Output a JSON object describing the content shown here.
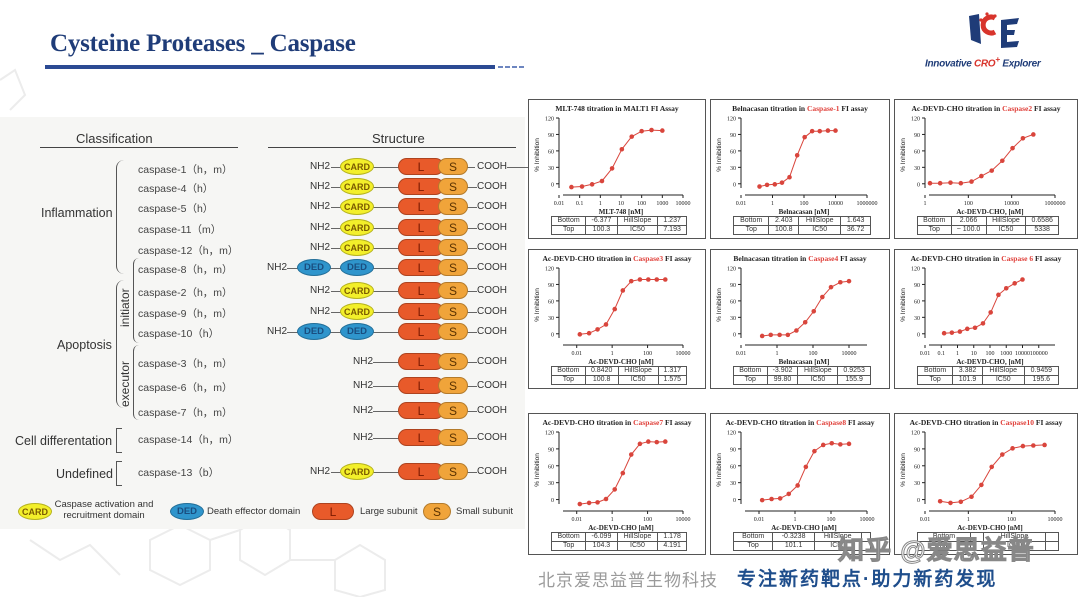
{
  "header": {
    "title": "Cysteine Proteases _ Caspase",
    "logo_text_1": "Innovative ",
    "logo_text_2": "CRO",
    "logo_text_sup": "+",
    "logo_text_3": " Explorer",
    "logo_mark": "ICE"
  },
  "classification": {
    "col_classification": "Classification",
    "col_structure": "Structure",
    "categories": {
      "inflammation": "Inflammation",
      "apoptosis": "Apoptosis",
      "initiator": "initiator",
      "executor": "executor",
      "cell_diff": "Cell differentation",
      "undefined": "Undefined"
    },
    "rows": [
      {
        "name": "caspase-1（h，m）",
        "domains": [
          "CARD"
        ]
      },
      {
        "name": "caspase-4（h）",
        "domains": [
          "CARD"
        ]
      },
      {
        "name": "caspase-5（h）",
        "domains": [
          "CARD"
        ]
      },
      {
        "name": "caspase-11（m）",
        "domains": [
          "CARD"
        ]
      },
      {
        "name": "caspase-12（h，m）",
        "domains": [
          "CARD"
        ]
      },
      {
        "name": "caspase-8（h，m）",
        "domains": [
          "DED",
          "DED"
        ]
      },
      {
        "name": "caspase-2（h，m）",
        "domains": [
          "CARD"
        ]
      },
      {
        "name": "caspase-9（h，m）",
        "domains": [
          "CARD"
        ]
      },
      {
        "name": "caspase-10（h）",
        "domains": [
          "DED",
          "DED"
        ]
      },
      {
        "name": "caspase-3（h，m）",
        "domains": []
      },
      {
        "name": "caspase-6（h，m）",
        "domains": []
      },
      {
        "name": "caspase-7（h，m）",
        "domains": []
      },
      {
        "name": "caspase-14（h，m）",
        "domains": []
      },
      {
        "name": "caspase-13（b）",
        "domains": [
          "CARD"
        ]
      }
    ],
    "terminal_n": "NH2",
    "terminal_c": "COOH",
    "large_label": "L",
    "small_label": "S",
    "card_label": "CARD",
    "ded_label": "DED",
    "legend": {
      "card_desc_1": "Caspase activation and",
      "card_desc_2": "recruitment domain",
      "ded_desc": "Death effector domain",
      "large_desc": "Large subunit",
      "small_desc": "Small subunit"
    }
  },
  "colors": {
    "title_blue": "#1f3c78",
    "card_yellow": "#f3ef2a",
    "ded_blue": "#2f95cc",
    "large_orange": "#e85a2a",
    "small_orange": "#f0a43a",
    "curve_red": "#d9453c",
    "highlight_red": "#e0403a"
  },
  "footer": {
    "company": "北京爱思益普生物科技",
    "slogan": "专注新药靶点·助力新药发现",
    "watermark": "知乎 @爱思益普"
  },
  "chart_data": [
    {
      "type": "line",
      "title_pre": "MLT-748 titration in MALT1 FI Assay",
      "title_hl": "",
      "title_post": "",
      "xlabel": "MLT-748  [nM]",
      "ylabel": "% Inhibition",
      "xscale": "log",
      "xlim": [
        0.01,
        10000
      ],
      "ylim": [
        -15,
        120
      ],
      "xticks": [
        "0.01",
        "0.1",
        "1",
        "10",
        "100",
        "1000",
        "10000"
      ],
      "yticks": [
        0,
        30,
        60,
        90,
        120
      ],
      "x": [
        0.04,
        0.13,
        0.4,
        1.2,
        3.7,
        11,
        33,
        100,
        300,
        1000
      ],
      "y": [
        -6,
        -5,
        -1,
        5,
        28,
        63,
        86,
        96,
        98,
        97
      ],
      "fit": {
        "Bottom": "-6.377",
        "Top": "100.3",
        "HillSlope": "1.237",
        "IC50": "7.193"
      }
    },
    {
      "type": "line",
      "title_pre": "Belnacasan titration in ",
      "title_hl": "Caspase-1",
      "title_post": " FI assay",
      "xlabel": "Belnacasan [nM]",
      "ylabel": "% Inhibition",
      "xscale": "log",
      "xlim": [
        0.01,
        1000000
      ],
      "ylim": [
        -15,
        120
      ],
      "xticks": [
        "0.01",
        "1",
        "100",
        "10000",
        "1000000"
      ],
      "yticks": [
        0,
        30,
        60,
        90,
        120
      ],
      "x": [
        0.15,
        0.45,
        1.4,
        4,
        12,
        37,
        110,
        330,
        1000,
        3300,
        10000
      ],
      "y": [
        -5,
        -2,
        -1,
        2,
        12,
        52,
        85,
        96,
        96,
        97,
        97
      ],
      "fit": {
        "Bottom": "2.403",
        "Top": "100.8",
        "HillSlope": "1.643",
        "IC50": "36.72"
      }
    },
    {
      "type": "line",
      "title_pre": "Ac-DEVD-CHO titration in ",
      "title_hl": "Caspase2",
      "title_post": " FI assay",
      "xlabel": "Ac-DEVD-CHO,  [nM]",
      "ylabel": "% Inhibition",
      "xscale": "log",
      "xlim": [
        1,
        1000000
      ],
      "ylim": [
        -15,
        120
      ],
      "xticks": [
        "1",
        "100",
        "10000",
        "1000000"
      ],
      "yticks": [
        0,
        30,
        60,
        90,
        120
      ],
      "x": [
        1.7,
        5,
        15,
        45,
        140,
        400,
        1200,
        3700,
        11000,
        33000,
        100000
      ],
      "y": [
        1,
        1,
        2,
        1,
        4,
        14,
        24,
        42,
        65,
        83,
        90
      ],
      "fit": {
        "Bottom": "2.066",
        "Top": "~ 100.0",
        "HillSlope": "0.6586",
        "IC50": "5338"
      }
    },
    {
      "type": "line",
      "title_pre": "Ac-DEVD-CHO titration in ",
      "title_hl": "Caspase3",
      "title_post": " FI assay",
      "xlabel": "Ac-DEVD-CHO [nM]",
      "ylabel": "% Inhibition",
      "xscale": "log",
      "xlim": [
        0.001,
        10000
      ],
      "ylim": [
        -15,
        120
      ],
      "xticks": [
        "0.01",
        "1",
        "100",
        "10000"
      ],
      "yticks": [
        0,
        30,
        60,
        90,
        120
      ],
      "x": [
        0.015,
        0.05,
        0.15,
        0.45,
        1.4,
        4,
        12,
        37,
        110,
        330,
        1000
      ],
      "y": [
        -1,
        1,
        8,
        17,
        45,
        79,
        96,
        99,
        99,
        99,
        99
      ],
      "fit": {
        "Bottom": "0.8420",
        "Top": "100.8",
        "HillSlope": "1.317",
        "IC50": "1.575"
      }
    },
    {
      "type": "line",
      "title_pre": "Belnacasan titration in ",
      "title_hl": "Caspase4",
      "title_post": " FI assay",
      "xlabel": "Belnacasan [nM]",
      "ylabel": "% Inhibition",
      "xscale": "log",
      "xlim": [
        0.01,
        100000
      ],
      "ylim": [
        -15,
        120
      ],
      "xticks": [
        "0.01",
        "1",
        "100",
        "10000"
      ],
      "yticks": [
        0,
        30,
        60,
        90,
        120
      ],
      "x": [
        0.15,
        0.45,
        1.4,
        4,
        12,
        37,
        110,
        330,
        1000,
        3300,
        10000
      ],
      "y": [
        -4,
        -2,
        -2,
        -2,
        6,
        21,
        41,
        67,
        85,
        94,
        96
      ],
      "fit": {
        "Bottom": "-3.902",
        "Top": "99.80",
        "HillSlope": "0.9253",
        "IC50": "155.9"
      }
    },
    {
      "type": "line",
      "title_pre": "Ac-DEVD-CHO titration in ",
      "title_hl": "Caspase 6",
      "title_post": " FI assay",
      "xlabel": "Ac-DEVD-CHO,  [nM]",
      "ylabel": "% Inhibition",
      "xscale": "log",
      "xlim": [
        0.01,
        1000000
      ],
      "ylim": [
        -15,
        120
      ],
      "xticks": [
        "0.01",
        "0.1",
        "1",
        "10",
        "100",
        "1000",
        "10000",
        "100000"
      ],
      "yticks": [
        0,
        30,
        60,
        90,
        120
      ],
      "x": [
        0.15,
        0.45,
        1.4,
        4,
        12,
        37,
        110,
        330,
        1000,
        3300,
        10000
      ],
      "y": [
        1,
        2,
        4,
        9,
        11,
        19,
        39,
        71,
        83,
        92,
        99
      ],
      "fit": {
        "Bottom": "3.382",
        "Top": "101.9",
        "HillSlope": "0.9459",
        "IC50": "195.6"
      }
    },
    {
      "type": "line",
      "title_pre": "Ac-DEVD-CHO titration in ",
      "title_hl": "Caspase7",
      "title_post": " FI assay",
      "xlabel": "Ac-DEVD-CHO [nM]",
      "ylabel": "% Inhibition",
      "xscale": "log",
      "xlim": [
        0.001,
        10000
      ],
      "ylim": [
        -15,
        120
      ],
      "xticks": [
        "0.01",
        "1",
        "100",
        "10000"
      ],
      "yticks": [
        0,
        30,
        60,
        90,
        120
      ],
      "x": [
        0.015,
        0.05,
        0.15,
        0.45,
        1.4,
        4,
        12,
        37,
        110,
        330,
        1000
      ],
      "y": [
        -8,
        -6,
        -5,
        1,
        18,
        47,
        80,
        99,
        103,
        102,
        103
      ],
      "fit": {
        "Bottom": "-6.099",
        "Top": "104.3",
        "HillSlope": "1.178",
        "IC50": "4.191"
      }
    },
    {
      "type": "line",
      "title_pre": "Ac-DEVD-CHO titration in ",
      "title_hl": "Caspase8",
      "title_post": " FI assay",
      "xlabel": "Ac-DEVD-CHO [nM]",
      "ylabel": "% Inhibition",
      "xscale": "log",
      "xlim": [
        0.001,
        10000
      ],
      "ylim": [
        -15,
        120
      ],
      "xticks": [
        "0.01",
        "1",
        "100",
        "10000"
      ],
      "yticks": [
        0,
        30,
        60,
        90,
        120
      ],
      "x": [
        0.015,
        0.05,
        0.15,
        0.45,
        1.4,
        4,
        12,
        37,
        110,
        330,
        1000
      ],
      "y": [
        -1,
        1,
        2,
        10,
        25,
        58,
        86,
        97,
        100,
        98,
        99
      ],
      "fit": {
        "Bottom": "-0.3238",
        "Top": "101.1",
        "HillSlope": "",
        "IC50": ""
      }
    },
    {
      "type": "line",
      "title_pre": "Ac-DEVD-CHO titration in ",
      "title_hl": "Caspase10",
      "title_post": " FI assay",
      "xlabel": "Ac-DEVD-CHO [nM]",
      "ylabel": "% Inhibition",
      "xscale": "log",
      "xlim": [
        0.01,
        10000
      ],
      "ylim": [
        -15,
        120
      ],
      "xticks": [
        "0.01",
        "1",
        "100",
        "10000"
      ],
      "yticks": [
        0,
        30,
        60,
        90,
        120
      ],
      "x": [
        0.05,
        0.15,
        0.45,
        1.4,
        4,
        12,
        37,
        110,
        330,
        1000,
        3300
      ],
      "y": [
        -3,
        -6,
        -4,
        5,
        26,
        58,
        80,
        91,
        95,
        96,
        97
      ],
      "fit": {
        "Bottom": "",
        "Top": "",
        "HillSlope": "",
        "IC50": ""
      }
    }
  ]
}
